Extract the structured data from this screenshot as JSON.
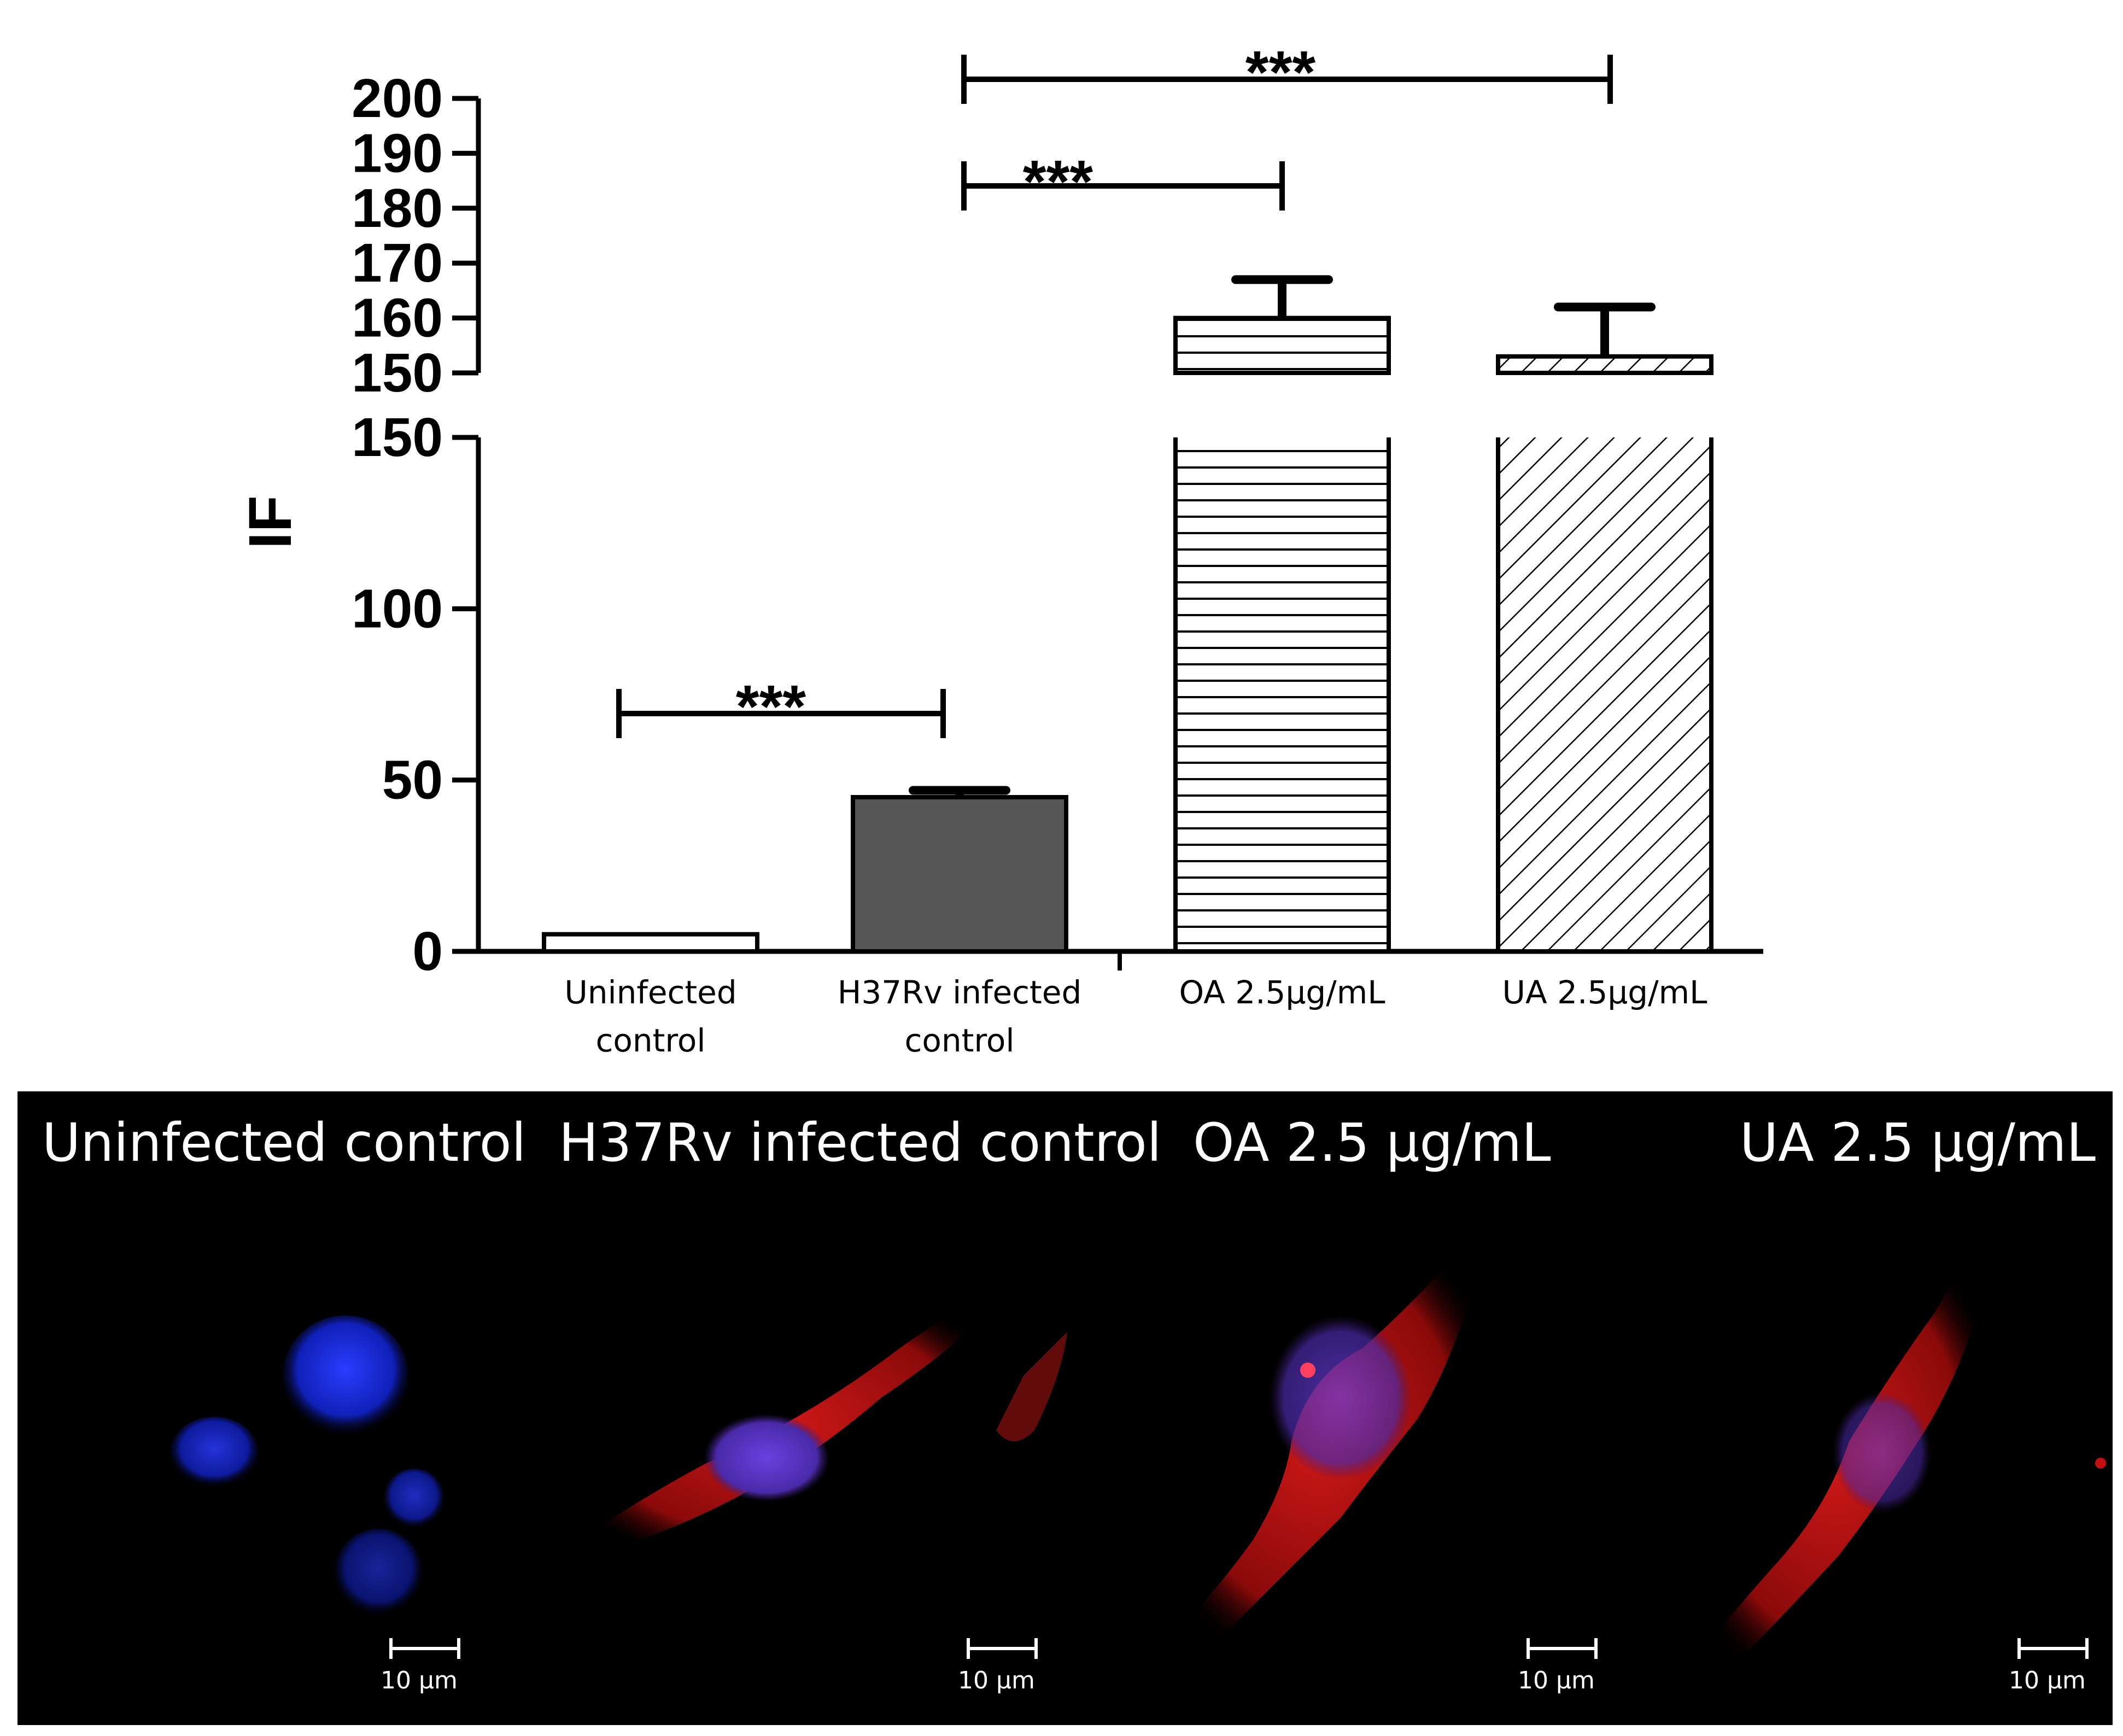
{
  "chart_data": {
    "type": "bar",
    "ylabel": "IF",
    "axis_break": true,
    "ylim_lower": [
      0,
      150
    ],
    "ylim_upper": [
      150,
      200
    ],
    "yticks_lower": [
      "0",
      "50",
      "100",
      "150"
    ],
    "yticks_upper": [
      "150",
      "160",
      "170",
      "180",
      "190",
      "200"
    ],
    "categories": [
      [
        "Uninfected",
        "control"
      ],
      [
        "H37Rv infected",
        "control"
      ],
      [
        "OA  2.5μg/mL"
      ],
      [
        "UA 2.5μg/mL"
      ]
    ],
    "values": [
      5,
      45,
      160,
      153
    ],
    "errors": [
      0,
      2,
      7,
      9
    ],
    "fills": [
      "white",
      "#555555",
      "horizontal-hatch",
      "diagonal-hatch"
    ],
    "significance": [
      {
        "from": 0,
        "to": 1,
        "label": "***"
      },
      {
        "from": 1,
        "to": 2,
        "label": "***"
      },
      {
        "from": 1,
        "to": 3,
        "label": "***"
      }
    ]
  },
  "micrographs": {
    "panels": [
      {
        "label": "Uninfected control",
        "scale": "10 μm"
      },
      {
        "label": "H37Rv infected control",
        "scale": "10 μm"
      },
      {
        "label": "OA  2.5 μg/mL",
        "scale": "10 μm"
      },
      {
        "label": "UA  2.5 μg/mL",
        "scale": "10 μm"
      }
    ]
  }
}
